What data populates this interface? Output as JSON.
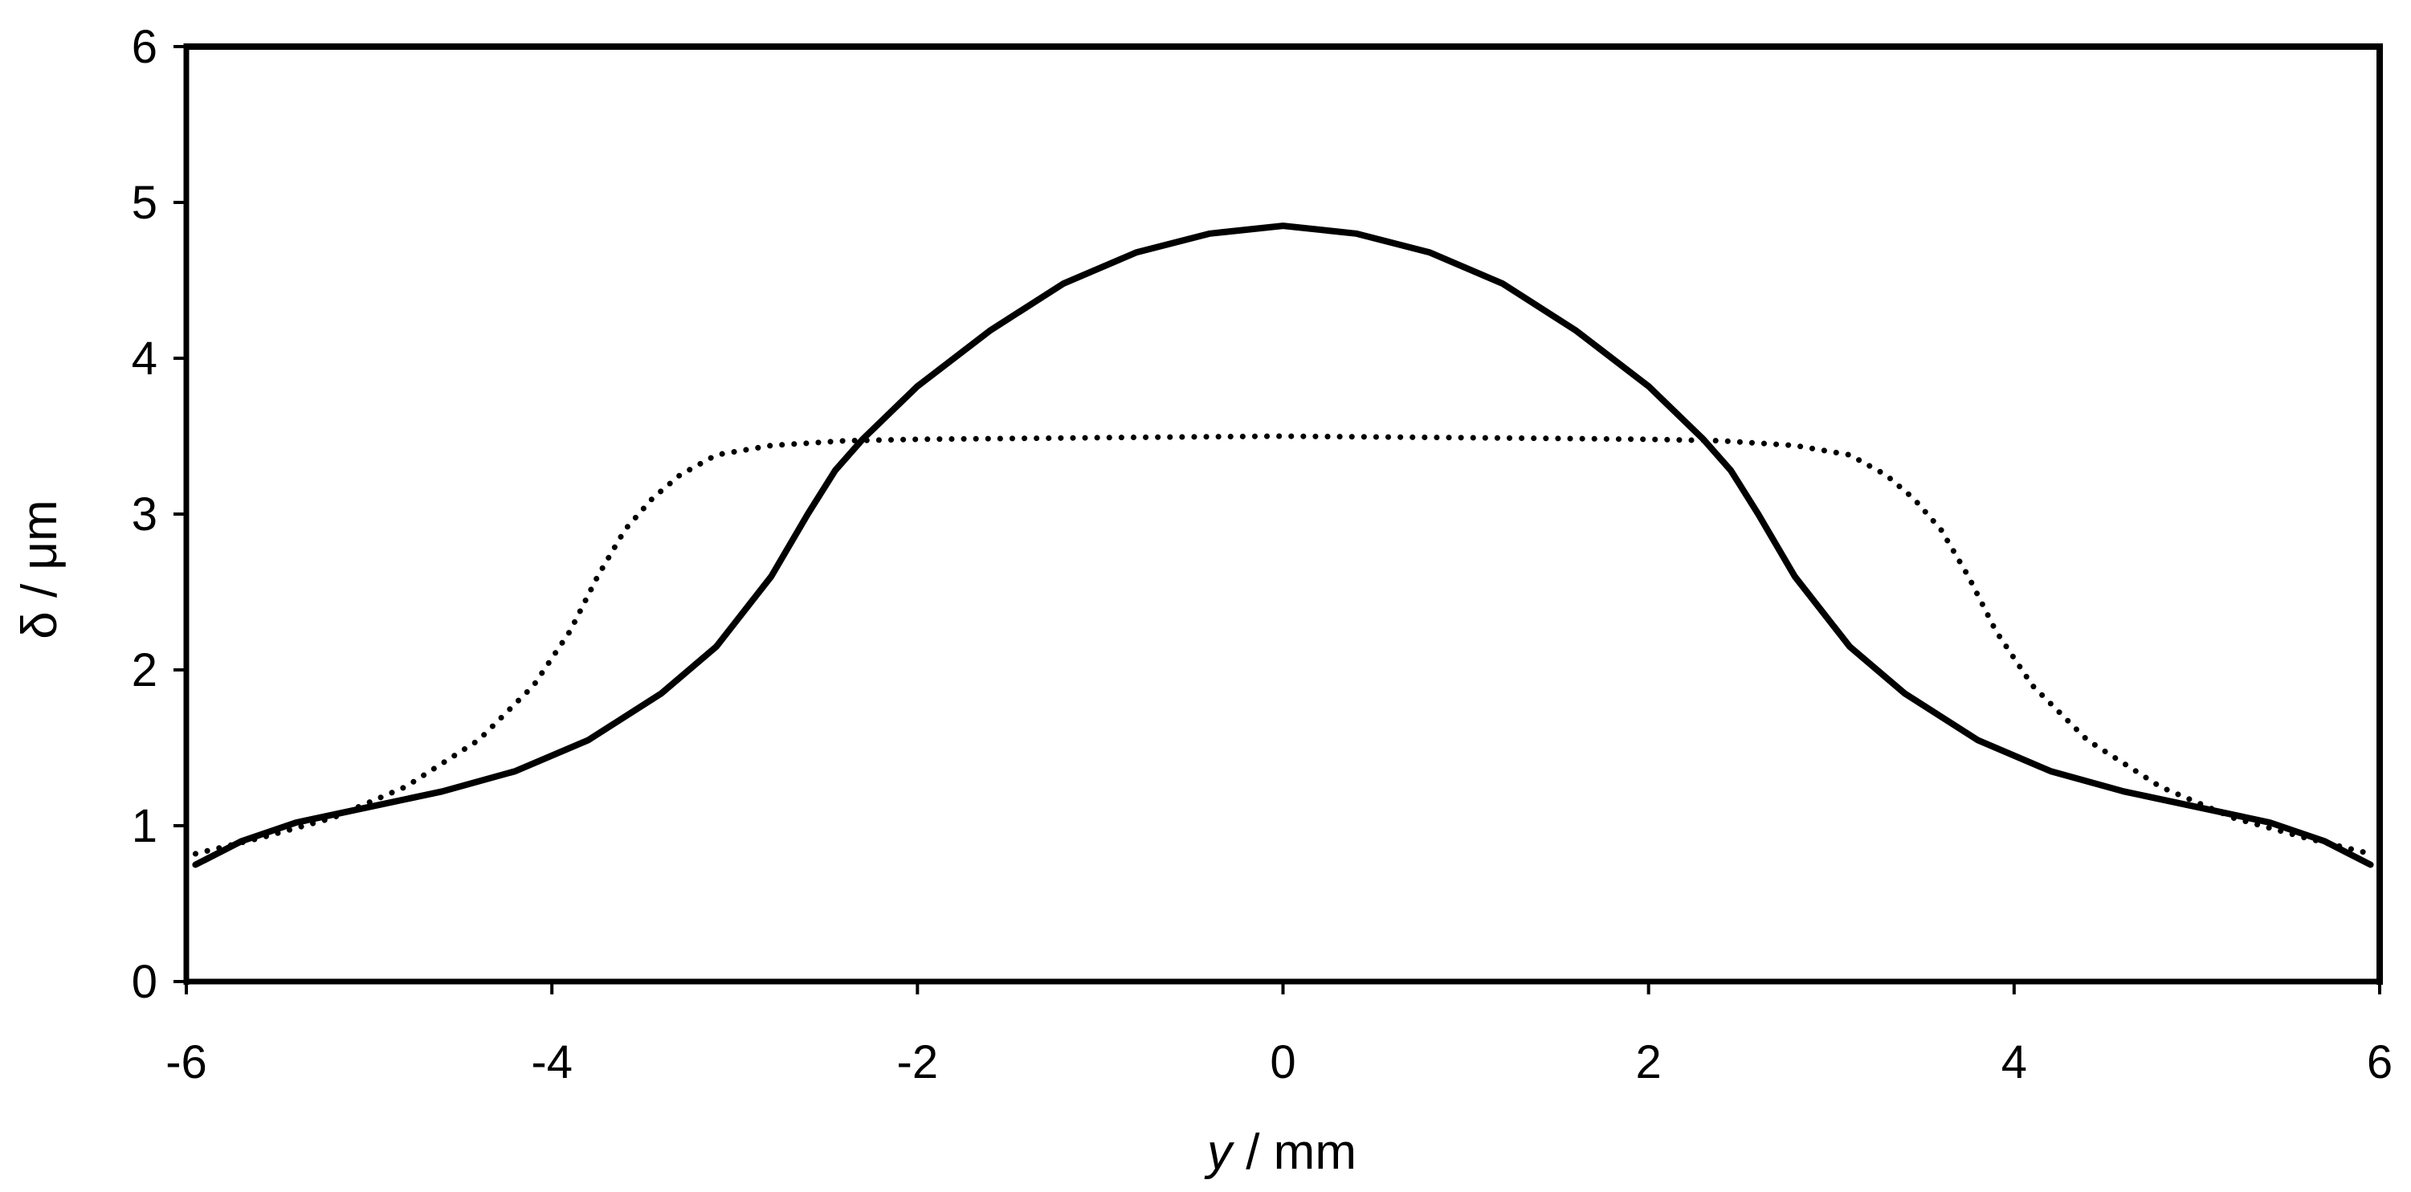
{
  "chart_data": {
    "type": "line",
    "title": "",
    "xlabel": "y / mm",
    "xlabel_parts": {
      "symbol": "y",
      "unit": " / mm"
    },
    "ylabel": "δ / μm",
    "xlim": [
      -6,
      6
    ],
    "ylim": [
      0,
      6
    ],
    "x_ticks": [
      -6,
      -4,
      -2,
      0,
      2,
      4,
      6
    ],
    "y_ticks": [
      0,
      1,
      2,
      3,
      4,
      5,
      6
    ],
    "grid": false,
    "legend": "none",
    "series": [
      {
        "style": "solid",
        "color": "#000000",
        "x": [
          -5.95,
          -5.7,
          -5.4,
          -5.0,
          -4.6,
          -4.2,
          -3.8,
          -3.4,
          -3.1,
          -2.8,
          -2.6,
          -2.45,
          -2.3,
          -2.0,
          -1.6,
          -1.2,
          -0.8,
          -0.4,
          0.0,
          0.4,
          0.8,
          1.2,
          1.6,
          2.0,
          2.3,
          2.45,
          2.6,
          2.8,
          3.1,
          3.4,
          3.8,
          4.2,
          4.6,
          5.0,
          5.4,
          5.7,
          5.95
        ],
        "y": [
          0.75,
          0.9,
          1.02,
          1.12,
          1.22,
          1.35,
          1.55,
          1.85,
          2.15,
          2.6,
          3.0,
          3.28,
          3.48,
          3.82,
          4.18,
          4.48,
          4.68,
          4.8,
          4.85,
          4.8,
          4.68,
          4.48,
          4.18,
          3.82,
          3.48,
          3.28,
          3.0,
          2.6,
          2.15,
          1.85,
          1.55,
          1.35,
          1.22,
          1.12,
          1.02,
          0.9,
          0.75
        ]
      },
      {
        "style": "dotted",
        "color": "#000000",
        "x": [
          -5.95,
          -5.6,
          -5.2,
          -4.8,
          -4.4,
          -4.1,
          -3.9,
          -3.75,
          -3.6,
          -3.45,
          -3.3,
          -3.1,
          -2.8,
          -2.4,
          -2.0,
          -1.0,
          0.0,
          1.0,
          2.0,
          2.4,
          2.8,
          3.1,
          3.3,
          3.45,
          3.6,
          3.75,
          3.9,
          4.1,
          4.4,
          4.8,
          5.2,
          5.6,
          5.95
        ],
        "y": [
          0.82,
          0.92,
          1.05,
          1.25,
          1.55,
          1.9,
          2.25,
          2.6,
          2.9,
          3.1,
          3.25,
          3.38,
          3.44,
          3.47,
          3.48,
          3.49,
          3.5,
          3.49,
          3.48,
          3.47,
          3.44,
          3.38,
          3.25,
          3.1,
          2.9,
          2.6,
          2.25,
          1.9,
          1.55,
          1.25,
          1.05,
          0.92,
          0.82
        ]
      }
    ]
  }
}
